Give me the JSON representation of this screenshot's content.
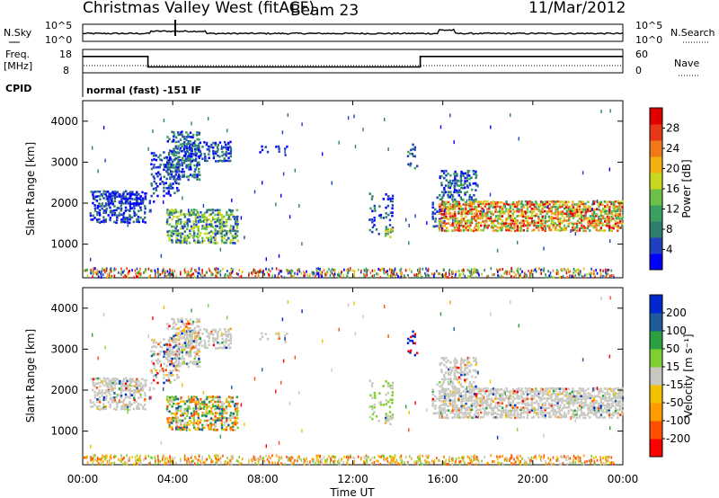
{
  "header": {
    "title": "Christmas Valley West (fitACF)",
    "beam": "Beam 23",
    "date": "11/Mar/2012"
  },
  "top_panels": {
    "nsky_label": "N.Sky",
    "nsky_ticks": [
      "10^5",
      "10^0"
    ],
    "nsearch_label": "N.Search",
    "nsearch_ticks": [
      "10^5",
      "10^0"
    ],
    "freq_label": "Freq.",
    "freq_unit": "[MHz]",
    "freq_ticks": [
      "18",
      "8"
    ],
    "nave_label": "Nave",
    "nave_ticks": [
      "60",
      "0"
    ],
    "cpid_label": "CPID",
    "cpid_text": "normal (fast) -151 IF"
  },
  "colors": {
    "power_scale": [
      "#0000ff",
      "#2040c0",
      "#2e7d6e",
      "#3aa060",
      "#6cc048",
      "#c8d820",
      "#f0b010",
      "#f07818",
      "#e83818",
      "#e00000"
    ],
    "velocity_scale": [
      "#ff0000",
      "#ff5000",
      "#ff9a00",
      "#f4c000",
      "#c8c8c0",
      "#7ed030",
      "#2aa040",
      "#1f5a9a",
      "#0028d0"
    ],
    "velocity_grey": "#c8c8c0"
  },
  "chart_data": [
    {
      "type": "heatmap",
      "name": "power",
      "xlabel": "",
      "ylabel": "Slant Range [km]",
      "x_ticks": [
        "00:00",
        "04:00",
        "08:00",
        "12:00",
        "16:00",
        "20:00",
        "00:00"
      ],
      "xlim_hours": [
        0,
        24
      ],
      "y_ticks": [
        "1000",
        "2000",
        "3000",
        "4000"
      ],
      "ylim": [
        180,
        4500
      ],
      "colorbar_label": "Power [dB]",
      "colorbar_ticks": [
        "28",
        "24",
        "20",
        "16",
        "12",
        "8",
        "4"
      ],
      "colorbar_range": [
        0,
        30
      ]
    },
    {
      "type": "heatmap",
      "name": "velocity",
      "xlabel": "Time UT",
      "ylabel": "Slant Range [km]",
      "x_ticks": [
        "00:00",
        "04:00",
        "08:00",
        "12:00",
        "16:00",
        "20:00",
        "00:00"
      ],
      "xlim_hours": [
        0,
        24
      ],
      "y_ticks": [
        "1000",
        "2000",
        "3000",
        "4000"
      ],
      "ylim": [
        180,
        4500
      ],
      "colorbar_label": "Velocity [m s⁻¹]",
      "colorbar_ticks": [
        "200",
        "100",
        "50",
        "15",
        "-15",
        "-50",
        "-100",
        "-200"
      ]
    }
  ],
  "frequency_trace": {
    "times_h": [
      0,
      2.9,
      2.9,
      15.0,
      15.0,
      24
    ],
    "values_mhz": [
      15,
      15,
      10.5,
      10.5,
      15,
      15
    ]
  }
}
